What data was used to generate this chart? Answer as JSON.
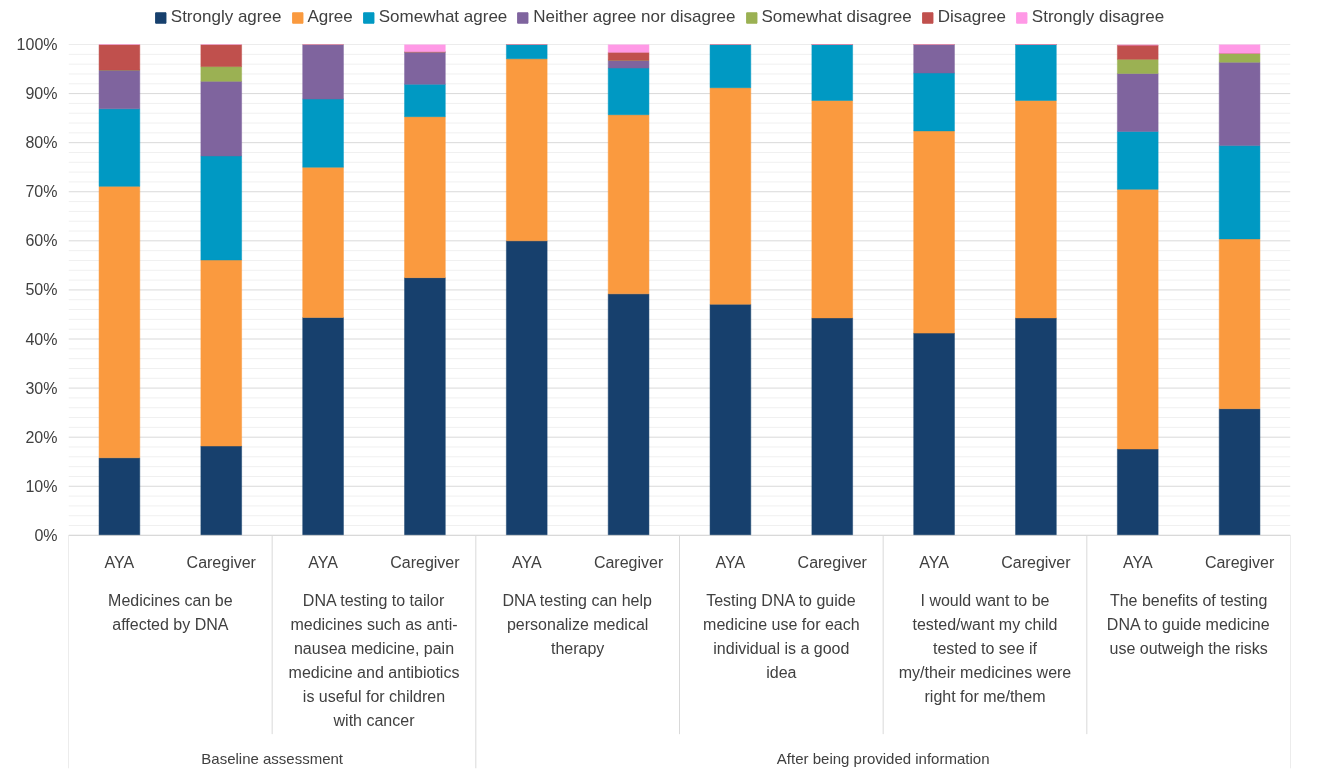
{
  "chart_data": {
    "type": "bar",
    "stacked": true,
    "categories": [
      "AYA",
      "Caregiver",
      "AYA",
      "Caregiver",
      "AYA",
      "Caregiver",
      "AYA",
      "Caregiver",
      "AYA",
      "Caregiver",
      "AYA",
      "Caregiver"
    ],
    "series": [
      {
        "name": "Strongly agree",
        "color": "#17406d",
        "values": [
          15.8,
          18.2,
          44.4,
          52.5,
          60.0,
          49.2,
          47.1,
          44.3,
          41.2,
          44.3,
          17.6,
          25.8
        ]
      },
      {
        "name": "Agree",
        "color": "#fa9a3f",
        "values": [
          55.3,
          37.9,
          30.6,
          32.8,
          37.1,
          36.5,
          44.1,
          44.3,
          41.2,
          44.3,
          52.9,
          34.6
        ]
      },
      {
        "name": "Somewhat agree",
        "color": "#0099c3",
        "values": [
          15.8,
          21.2,
          13.9,
          6.6,
          2.9,
          9.5,
          8.8,
          11.5,
          11.8,
          11.5,
          11.8,
          19.0
        ]
      },
      {
        "name": "Neither agree nor disagree",
        "color": "#7f649e",
        "values": [
          7.9,
          15.2,
          11.1,
          6.6,
          0,
          1.6,
          0,
          0,
          5.9,
          0,
          11.8,
          17.0
        ]
      },
      {
        "name": "Somewhat disagree",
        "color": "#9bb153",
        "values": [
          0,
          3.0,
          0,
          0,
          0,
          0,
          0,
          0,
          0,
          0,
          2.9,
          1.8
        ]
      },
      {
        "name": "Disagree",
        "color": "#c0504d",
        "values": [
          5.3,
          4.5,
          0,
          0,
          0,
          1.6,
          0,
          0,
          0,
          0,
          2.9,
          0
        ]
      },
      {
        "name": "Strongly disagree",
        "color": "#ff99e6",
        "values": [
          0,
          0,
          0,
          1.6,
          0,
          1.6,
          0,
          0,
          0,
          0,
          0,
          1.8
        ]
      }
    ],
    "ylim": [
      0,
      100
    ],
    "yticks": [
      {
        "value": 0,
        "label": "0%"
      },
      {
        "value": 10,
        "label": "10%"
      },
      {
        "value": 20,
        "label": "20%"
      },
      {
        "value": 30,
        "label": "30%"
      },
      {
        "value": 40,
        "label": "40%"
      },
      {
        "value": 50,
        "label": "50%"
      },
      {
        "value": 60,
        "label": "60%"
      },
      {
        "value": 70,
        "label": "70%"
      },
      {
        "value": 80,
        "label": "80%"
      },
      {
        "value": 90,
        "label": "90%"
      },
      {
        "value": 100,
        "label": "100%"
      }
    ],
    "grid": "y",
    "legend": "top",
    "annotations": [
      "Medicines can be affected by DNA",
      "DNA testing to tailor medicines such as anti-nausea medicine, pain medicine and antibiotics is useful for children with cancer",
      "DNA testing can help personalize medical therapy",
      "Testing DNA to guide medicine use for each individual is a good idea",
      "I would want to be tested/want my child tested to see if my/their medicines were right for me/them",
      "The benefits of testing DNA to guide medicine use outweigh the risks",
      "Baseline assessment",
      "After being provided information"
    ]
  }
}
